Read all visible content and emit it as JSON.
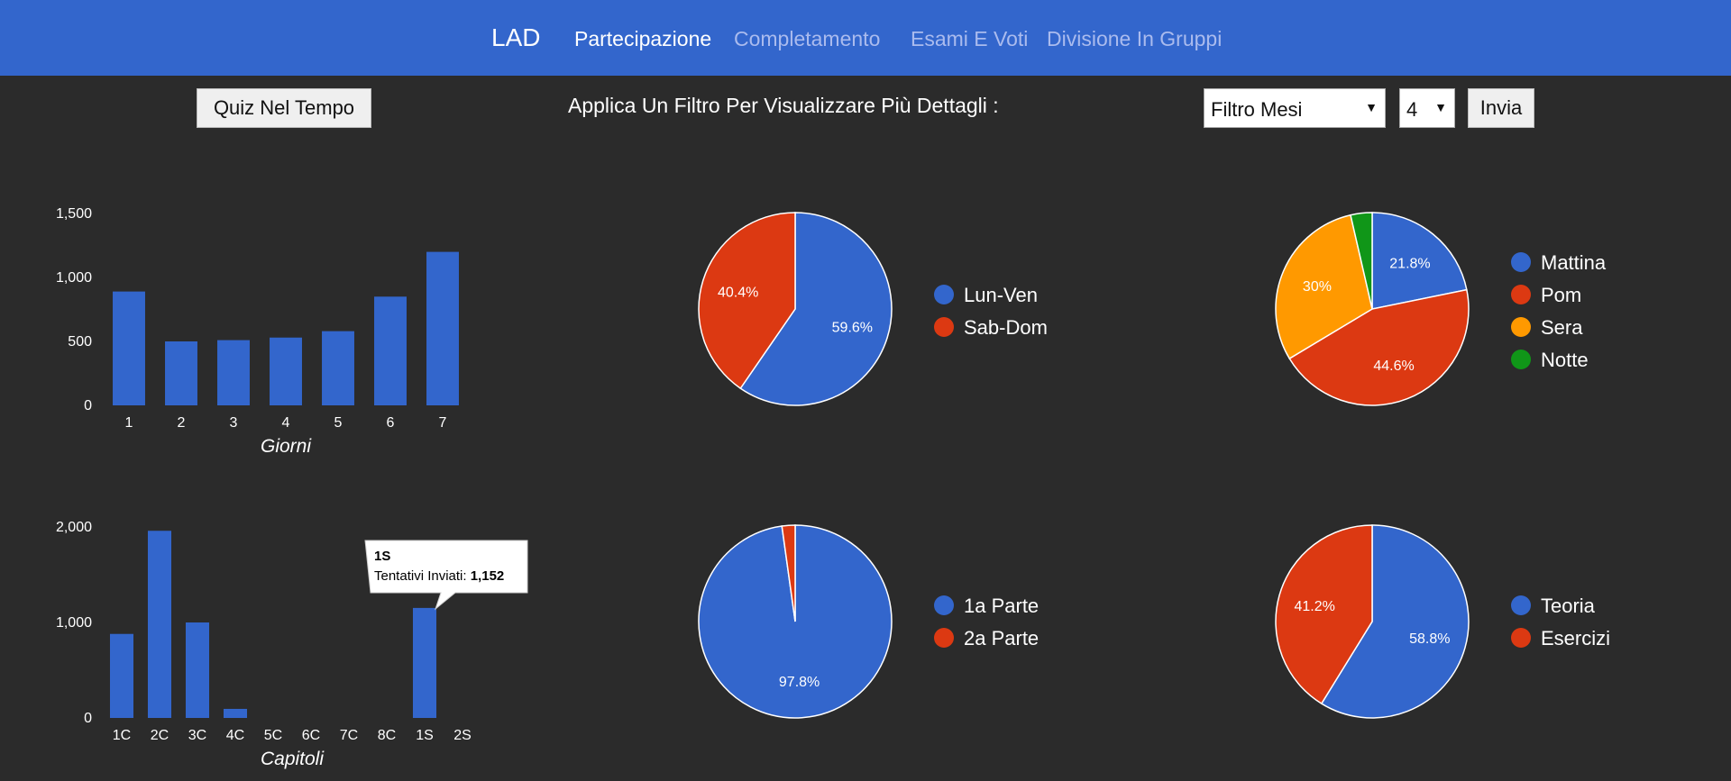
{
  "nav": {
    "brand": "LAD",
    "items": [
      {
        "label": "Partecipazione",
        "active": true
      },
      {
        "label": "Completamento",
        "active": false
      },
      {
        "label": "Esami E Voti",
        "active": false
      },
      {
        "label": "Divisione In Gruppi",
        "active": false
      }
    ]
  },
  "toolbar": {
    "quiz_button": "Quiz Nel Tempo",
    "filter_label": "Applica Un Filtro Per Visualizzare Più Dettagli :",
    "filter_select": "Filtro Mesi",
    "number_select": "4",
    "submit_button": "Invia"
  },
  "colors": {
    "blue": "#3366cc",
    "red": "#dc3912",
    "orange": "#ff9900",
    "green": "#109618",
    "nav_bg": "#3366cc",
    "page_bg": "#2b2b2b"
  },
  "chart_data": [
    {
      "type": "bar",
      "categories": [
        "1",
        "2",
        "3",
        "4",
        "5",
        "6",
        "7"
      ],
      "values": [
        890,
        500,
        510,
        530,
        580,
        850,
        1200
      ],
      "ylim": [
        0,
        1500
      ],
      "yticks": [
        "0",
        "500",
        "1,000",
        "1,500"
      ],
      "ytick_values": [
        0,
        500,
        1000,
        1500
      ],
      "xlabel": "Giorni",
      "color": "#3366cc"
    },
    {
      "type": "pie",
      "labels": [
        "Lun-Ven",
        "Sab-Dom"
      ],
      "values": [
        59.6,
        40.4
      ],
      "value_labels": [
        "59.6%",
        "40.4%"
      ],
      "colors": [
        "#3366cc",
        "#dc3912"
      ]
    },
    {
      "type": "pie",
      "labels": [
        "Mattina",
        "Pom",
        "Sera",
        "Notte"
      ],
      "values": [
        21.8,
        44.6,
        30,
        3.6
      ],
      "value_labels": [
        "21.8%",
        "44.6%",
        "30%",
        ""
      ],
      "colors": [
        "#3366cc",
        "#dc3912",
        "#ff9900",
        "#109618"
      ]
    },
    {
      "type": "bar",
      "categories": [
        "1C",
        "2C",
        "3C",
        "4C",
        "5C",
        "6C",
        "7C",
        "8C",
        "1S",
        "2S"
      ],
      "values": [
        880,
        1960,
        1000,
        95,
        0,
        0,
        0,
        0,
        1152,
        0
      ],
      "ylim": [
        0,
        2000
      ],
      "yticks": [
        "0",
        "1,000",
        "2,000"
      ],
      "ytick_values": [
        0,
        1000,
        2000
      ],
      "xlabel": "Capitoli",
      "color": "#3366cc",
      "tooltip": {
        "title": "1S",
        "label": "Tentativi Inviati:",
        "value": "1,152"
      }
    },
    {
      "type": "pie",
      "labels": [
        "1a Parte",
        "2a Parte"
      ],
      "values": [
        97.8,
        2.2
      ],
      "value_labels": [
        "97.8%",
        ""
      ],
      "colors": [
        "#3366cc",
        "#dc3912"
      ]
    },
    {
      "type": "pie",
      "labels": [
        "Teoria",
        "Esercizi"
      ],
      "values": [
        58.8,
        41.2
      ],
      "value_labels": [
        "58.8%",
        "41.2%"
      ],
      "colors": [
        "#3366cc",
        "#dc3912"
      ]
    }
  ]
}
